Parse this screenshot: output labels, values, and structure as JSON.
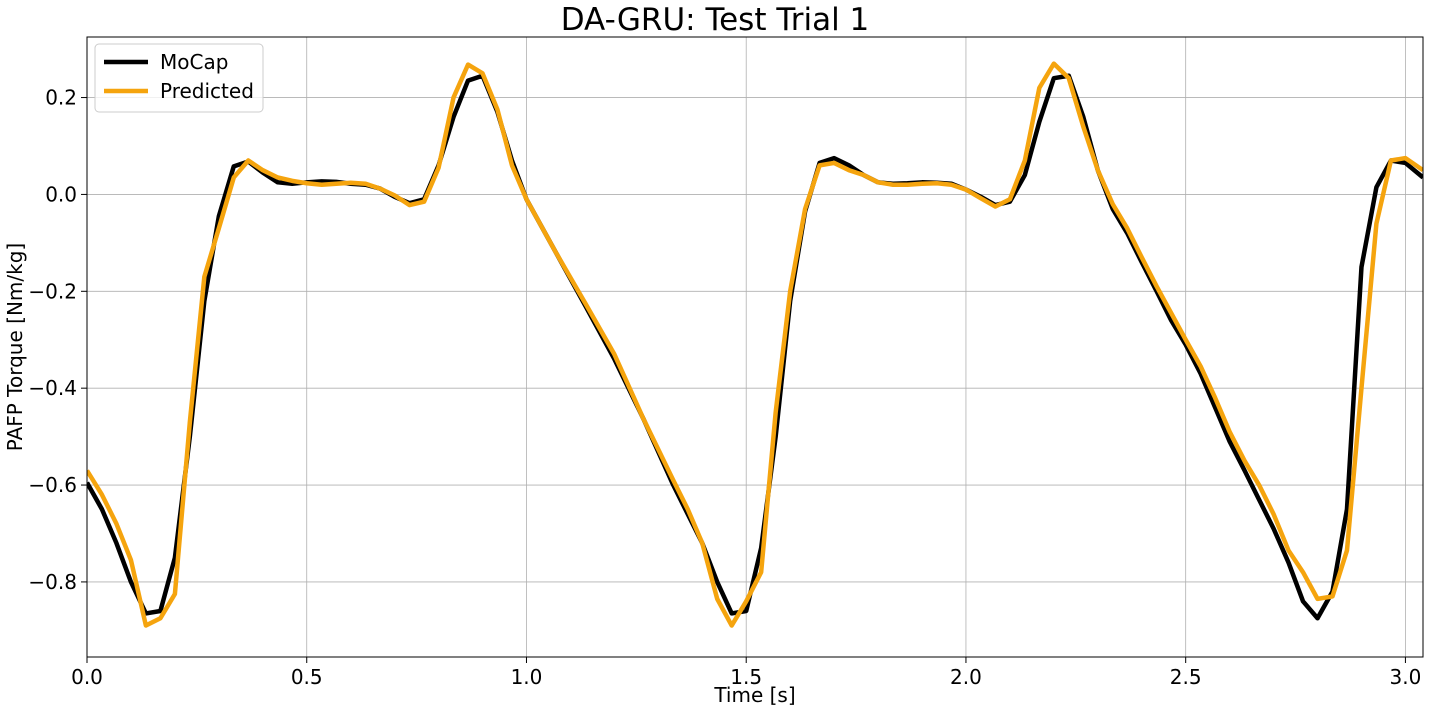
{
  "chart_data": {
    "type": "line",
    "title": "DA-GRU: Test Trial 1",
    "xlabel": "Time [s]",
    "ylabel": "PAFP Torque [Nm/kg]",
    "xlim": [
      0,
      3.04
    ],
    "ylim": [
      -0.955,
      0.325
    ],
    "xticks": [
      0.0,
      0.5,
      1.0,
      1.5,
      2.0,
      2.5,
      3.0
    ],
    "xtick_labels": [
      "0.0",
      "0.5",
      "1.0",
      "1.5",
      "2.0",
      "2.5",
      "3.0"
    ],
    "yticks": [
      0.2,
      0.0,
      -0.2,
      -0.4,
      -0.6,
      -0.8
    ],
    "ytick_labels": [
      "0.2",
      "0.0",
      "−0.2",
      "−0.4",
      "−0.6",
      "−0.8"
    ],
    "grid": true,
    "legend_position": "top-left",
    "series": [
      {
        "name": "MoCap",
        "color": "#000000",
        "x": [
          0.0,
          0.034,
          0.067,
          0.1,
          0.134,
          0.167,
          0.2,
          0.234,
          0.267,
          0.3,
          0.334,
          0.367,
          0.4,
          0.434,
          0.467,
          0.5,
          0.534,
          0.567,
          0.6,
          0.634,
          0.667,
          0.7,
          0.734,
          0.767,
          0.8,
          0.834,
          0.867,
          0.9,
          0.934,
          0.967,
          1.0,
          1.067,
          1.134,
          1.2,
          1.267,
          1.334,
          1.367,
          1.4,
          1.434,
          1.467,
          1.5,
          1.534,
          1.567,
          1.6,
          1.634,
          1.667,
          1.7,
          1.734,
          1.767,
          1.8,
          1.834,
          1.867,
          1.9,
          1.934,
          1.967,
          2.0,
          2.034,
          2.067,
          2.1,
          2.134,
          2.167,
          2.2,
          2.234,
          2.267,
          2.3,
          2.334,
          2.367,
          2.4,
          2.434,
          2.467,
          2.5,
          2.534,
          2.567,
          2.6,
          2.634,
          2.667,
          2.7,
          2.734,
          2.767,
          2.8,
          2.834,
          2.867,
          2.9,
          2.934,
          2.967,
          3.0,
          3.04
        ],
        "y": [
          -0.595,
          -0.65,
          -0.72,
          -0.8,
          -0.865,
          -0.86,
          -0.75,
          -0.5,
          -0.22,
          -0.045,
          0.058,
          0.068,
          0.045,
          0.025,
          0.022,
          0.025,
          0.027,
          0.026,
          0.022,
          0.02,
          0.012,
          -0.005,
          -0.018,
          -0.01,
          0.06,
          0.16,
          0.235,
          0.245,
          0.17,
          0.07,
          -0.01,
          -0.12,
          -0.23,
          -0.34,
          -0.465,
          -0.6,
          -0.66,
          -0.72,
          -0.8,
          -0.865,
          -0.86,
          -0.73,
          -0.5,
          -0.22,
          -0.035,
          0.065,
          0.075,
          0.06,
          0.04,
          0.025,
          0.022,
          0.023,
          0.025,
          0.024,
          0.022,
          0.01,
          -0.005,
          -0.022,
          -0.015,
          0.04,
          0.15,
          0.24,
          0.245,
          0.16,
          0.05,
          -0.03,
          -0.08,
          -0.14,
          -0.2,
          -0.26,
          -0.31,
          -0.37,
          -0.44,
          -0.51,
          -0.57,
          -0.63,
          -0.69,
          -0.76,
          -0.84,
          -0.875,
          -0.82,
          -0.65,
          -0.15,
          0.015,
          0.07,
          0.065,
          0.035
        ]
      },
      {
        "name": "Predicted",
        "color": "#f5a40e",
        "x": [
          0.0,
          0.034,
          0.067,
          0.1,
          0.134,
          0.167,
          0.2,
          0.234,
          0.267,
          0.3,
          0.334,
          0.367,
          0.4,
          0.434,
          0.467,
          0.5,
          0.534,
          0.567,
          0.6,
          0.634,
          0.667,
          0.7,
          0.734,
          0.767,
          0.8,
          0.834,
          0.867,
          0.9,
          0.934,
          0.967,
          1.0,
          1.067,
          1.134,
          1.2,
          1.267,
          1.334,
          1.367,
          1.4,
          1.434,
          1.467,
          1.5,
          1.534,
          1.567,
          1.6,
          1.634,
          1.667,
          1.7,
          1.734,
          1.767,
          1.8,
          1.834,
          1.867,
          1.9,
          1.934,
          1.967,
          2.0,
          2.034,
          2.067,
          2.1,
          2.134,
          2.167,
          2.2,
          2.234,
          2.267,
          2.3,
          2.334,
          2.367,
          2.4,
          2.434,
          2.467,
          2.5,
          2.534,
          2.567,
          2.6,
          2.634,
          2.667,
          2.7,
          2.734,
          2.767,
          2.8,
          2.834,
          2.867,
          2.9,
          2.934,
          2.967,
          3.0,
          3.04
        ],
        "y": [
          -0.57,
          -0.62,
          -0.68,
          -0.755,
          -0.89,
          -0.875,
          -0.825,
          -0.47,
          -0.17,
          -0.07,
          0.035,
          0.07,
          0.05,
          0.035,
          0.028,
          0.023,
          0.02,
          0.022,
          0.024,
          0.022,
          0.012,
          -0.002,
          -0.022,
          -0.015,
          0.055,
          0.2,
          0.268,
          0.25,
          0.175,
          0.06,
          -0.01,
          -0.12,
          -0.225,
          -0.33,
          -0.465,
          -0.59,
          -0.65,
          -0.72,
          -0.835,
          -0.89,
          -0.84,
          -0.78,
          -0.45,
          -0.2,
          -0.03,
          0.06,
          0.065,
          0.05,
          0.04,
          0.025,
          0.02,
          0.02,
          0.022,
          0.023,
          0.02,
          0.01,
          -0.008,
          -0.025,
          -0.01,
          0.07,
          0.22,
          0.27,
          0.24,
          0.14,
          0.05,
          -0.02,
          -0.07,
          -0.13,
          -0.19,
          -0.245,
          -0.3,
          -0.355,
          -0.42,
          -0.49,
          -0.55,
          -0.6,
          -0.66,
          -0.735,
          -0.78,
          -0.835,
          -0.83,
          -0.735,
          -0.4,
          -0.06,
          0.07,
          0.075,
          0.05
        ]
      }
    ]
  }
}
